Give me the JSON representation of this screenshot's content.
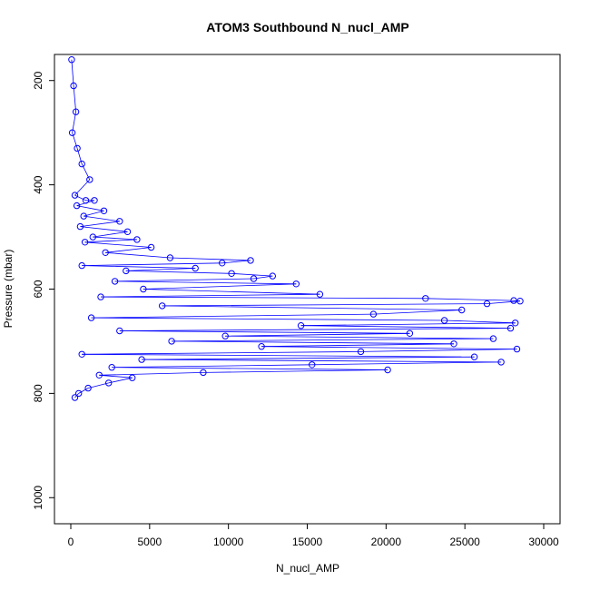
{
  "chart_data": {
    "type": "scatter",
    "title": "ATOM3 Southbound N_nucl_AMP",
    "xlabel": "N_nucl_AMP",
    "ylabel": "Pressure (mbar)",
    "xlim": [
      0,
      30000
    ],
    "ylim": [
      1050,
      150
    ],
    "y_reversed": true,
    "grid": false,
    "legend": "none",
    "marker": "open-circle",
    "connect_points": true,
    "series_color": "#0000ff",
    "x_ticks": [
      "0",
      "5000",
      "10000",
      "15000",
      "20000",
      "25000",
      "30000"
    ],
    "y_ticks": [
      "200",
      "400",
      "600",
      "800",
      "1000"
    ],
    "series": [
      {
        "x": [
          50,
          180,
          320,
          90,
          410,
          700,
          1200,
          260,
          950,
          1500,
          380,
          2100,
          820,
          3100,
          600,
          3600,
          1400,
          4200,
          900,
          5100,
          2200,
          6300,
          11400,
          9600,
          700,
          7900,
          3500,
          10200,
          12800,
          11600,
          2800,
          14300,
          4600,
          15800,
          1900,
          22500,
          28100,
          28500,
          26400,
          5800,
          24800,
          19200,
          1300,
          23700,
          28200,
          14600,
          27900,
          3100,
          21500,
          9800,
          26800,
          6400,
          24300,
          12100,
          28300,
          18400,
          700,
          25600,
          4500,
          27300,
          15300,
          2600,
          20100,
          8400,
          1800,
          3900,
          2400,
          1100,
          500,
          260
        ],
        "y": [
          160,
          210,
          260,
          300,
          330,
          360,
          390,
          420,
          430,
          430,
          440,
          450,
          460,
          470,
          480,
          490,
          500,
          505,
          510,
          520,
          530,
          540,
          545,
          550,
          555,
          560,
          565,
          570,
          575,
          580,
          585,
          590,
          600,
          610,
          615,
          618,
          622,
          623,
          628,
          632,
          640,
          648,
          655,
          660,
          665,
          670,
          675,
          680,
          685,
          690,
          695,
          700,
          705,
          710,
          715,
          720,
          725,
          730,
          735,
          740,
          745,
          750,
          755,
          760,
          765,
          770,
          780,
          790,
          800,
          808
        ]
      }
    ]
  }
}
